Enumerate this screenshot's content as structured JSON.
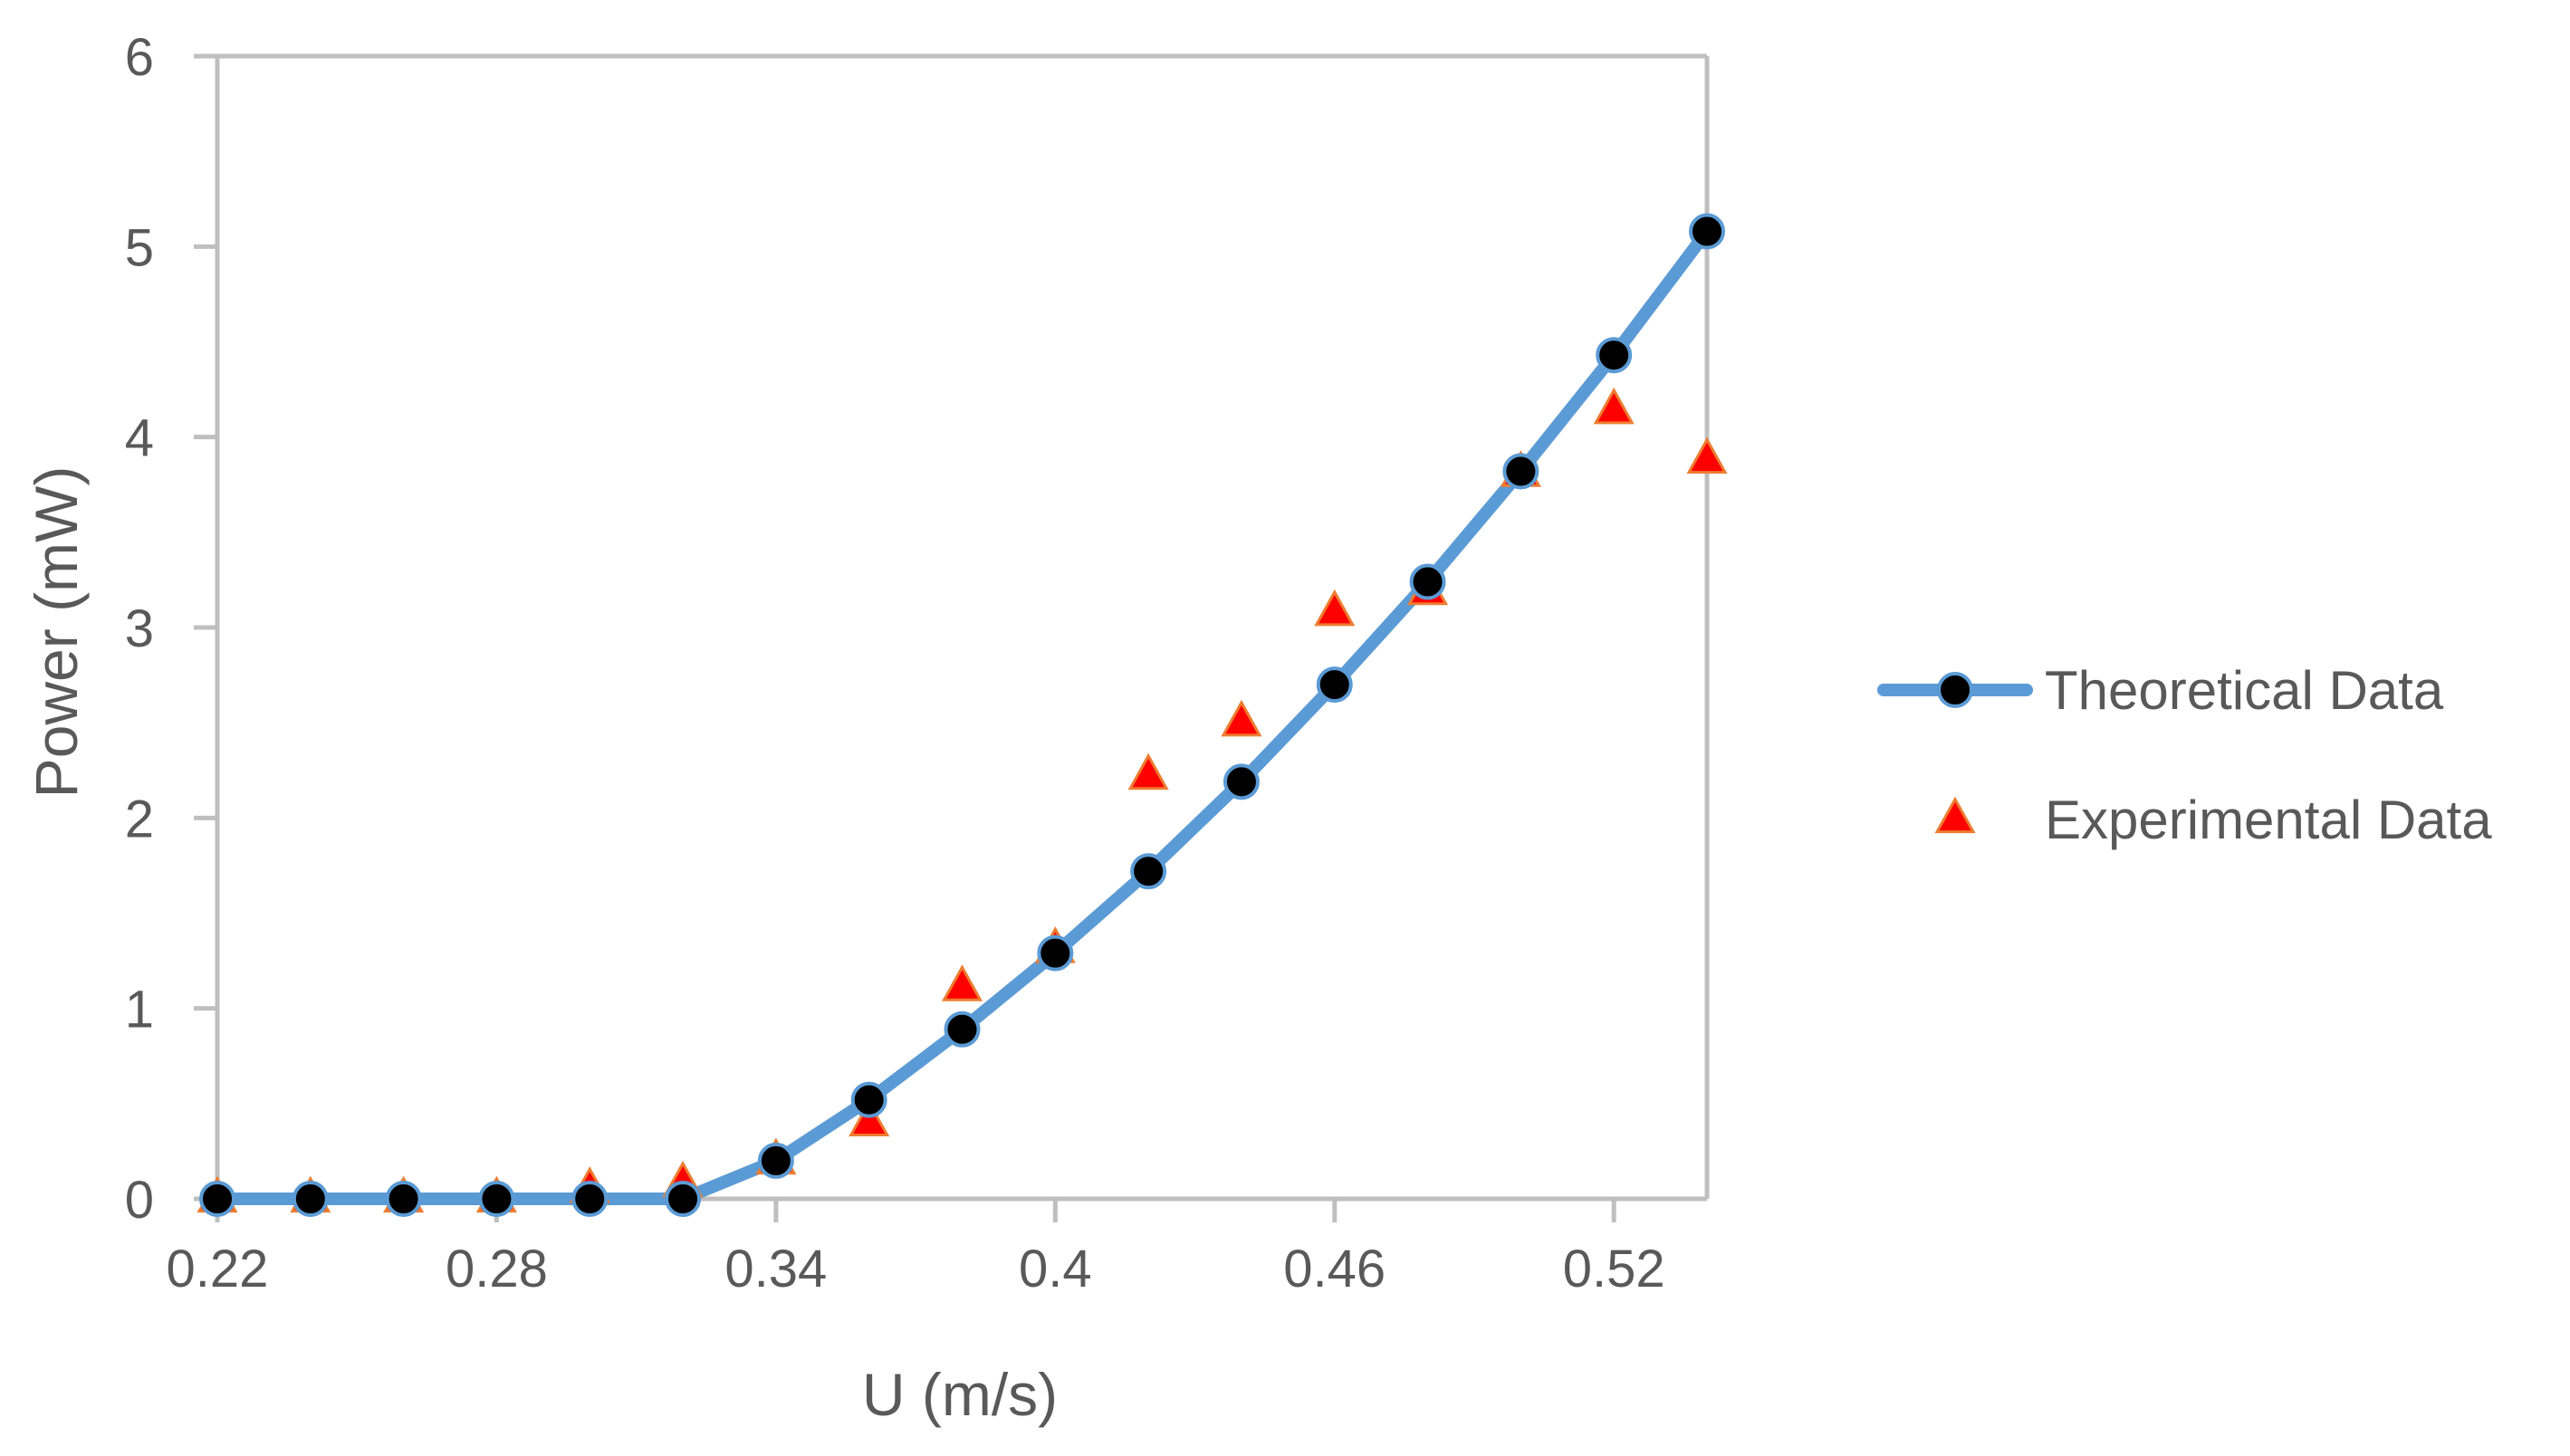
{
  "chart_data": {
    "type": "line",
    "title": "",
    "xlabel": "U (m/s)",
    "ylabel": "Power (mW)",
    "xlim": [
      0.22,
      0.54
    ],
    "ylim": [
      0,
      6
    ],
    "xticks": [
      0.22,
      0.28,
      0.34,
      0.4,
      0.46,
      0.52
    ],
    "xtick_labels": [
      "0.22",
      "0.28",
      "0.34",
      "0.4",
      "0.46",
      "0.52"
    ],
    "yticks": [
      0,
      1,
      2,
      3,
      4,
      5,
      6
    ],
    "ytick_labels": [
      "0",
      "1",
      "2",
      "3",
      "4",
      "5",
      "6"
    ],
    "grid": false,
    "legend_position": "right",
    "series": [
      {
        "name": "Theoretical Data",
        "style": "line+circle",
        "line_color": "#5B9BD5",
        "marker_color": "#000000",
        "x": [
          0.22,
          0.24,
          0.26,
          0.28,
          0.3,
          0.32,
          0.34,
          0.36,
          0.38,
          0.4,
          0.42,
          0.44,
          0.46,
          0.48,
          0.5,
          0.52,
          0.54
        ],
        "y": [
          0,
          0,
          0,
          0,
          0,
          0,
          0.2,
          0.52,
          0.89,
          1.29,
          1.72,
          2.19,
          2.7,
          3.24,
          3.82,
          4.43,
          5.08
        ]
      },
      {
        "name": "Experimental Data",
        "style": "triangle",
        "marker_color": "#FF0000",
        "marker_edge": "#ED7D31",
        "x": [
          0.22,
          0.24,
          0.26,
          0.28,
          0.3,
          0.32,
          0.34,
          0.36,
          0.38,
          0.4,
          0.42,
          0.44,
          0.46,
          0.48,
          0.5,
          0.52,
          0.54
        ],
        "y": [
          0,
          0,
          0,
          0,
          0.05,
          0.08,
          0.2,
          0.4,
          1.11,
          1.31,
          2.22,
          2.5,
          3.08,
          3.19,
          3.81,
          4.14,
          3.88
        ]
      }
    ]
  }
}
